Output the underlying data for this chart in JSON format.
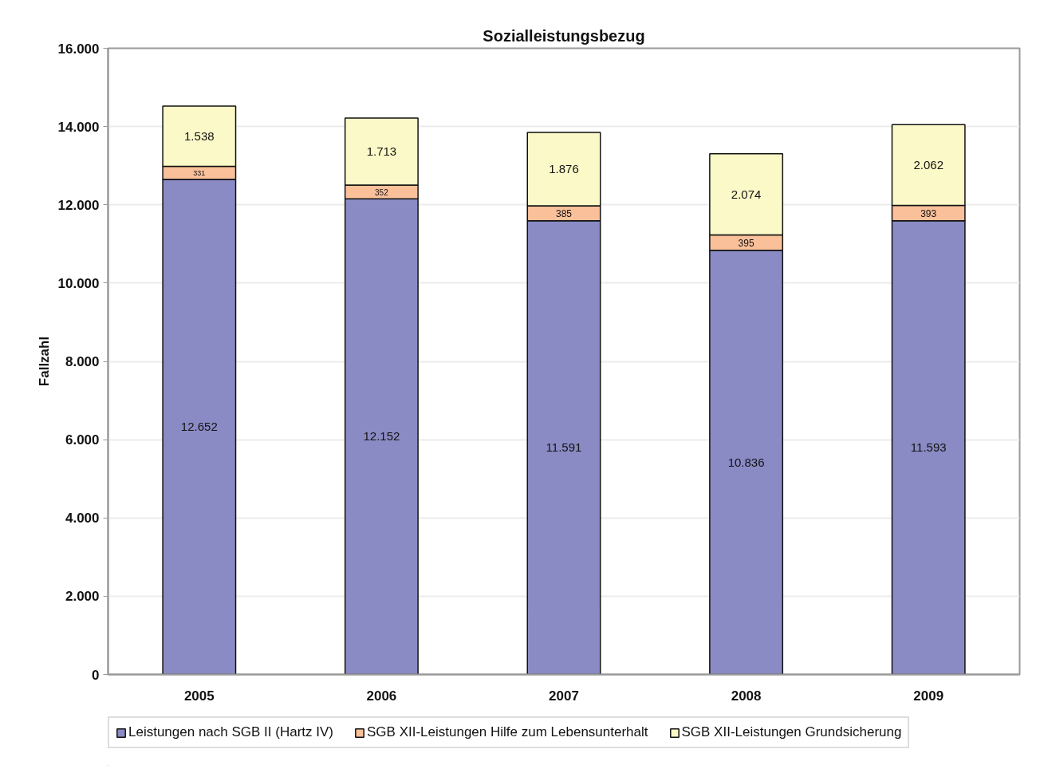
{
  "chart_data": {
    "type": "bar",
    "title": "Sozialleistungsbezug",
    "ylabel": "Fallzahl",
    "categories": [
      "2005",
      "2006",
      "2007",
      "2008",
      "2009"
    ],
    "stacked": true,
    "series": [
      {
        "name": "Leistungen nach SGB II (Hartz IV)",
        "color": "#8a8bc4",
        "values": [
          12652,
          12152,
          11591,
          10836,
          11593
        ],
        "value_labels": [
          "12.652",
          "12.152",
          "11.591",
          "10.836",
          "11.593"
        ]
      },
      {
        "name": "SGB XII-Leistungen Hilfe zum Lebensunterhalt",
        "color": "#f9c09a",
        "values": [
          331,
          352,
          385,
          395,
          393
        ],
        "value_labels": [
          "331",
          "352",
          "385",
          "395",
          "393"
        ]
      },
      {
        "name": "SGB XII-Leistungen Grundsicherung",
        "color": "#fbf9c8",
        "values": [
          1538,
          1713,
          1876,
          2074,
          2062
        ],
        "value_labels": [
          "1.538",
          "1.713",
          "1.876",
          "2.074",
          "2.062"
        ]
      }
    ],
    "ylim": [
      0,
      16000
    ],
    "yticks": [
      0,
      {
        "value": 2000,
        "label": "2.000"
      },
      {
        "value": 4000,
        "label": "4.000"
      },
      {
        "value": 6000,
        "label": "6.000"
      },
      {
        "value": 8000,
        "label": "8.000"
      },
      {
        "value": 10000,
        "label": "10.000"
      },
      {
        "value": 12000,
        "label": "12.000"
      },
      {
        "value": 14000,
        "label": "14.000"
      },
      {
        "value": 16000,
        "label": "16.000"
      }
    ],
    "grid": "y",
    "legend": "bottom"
  }
}
